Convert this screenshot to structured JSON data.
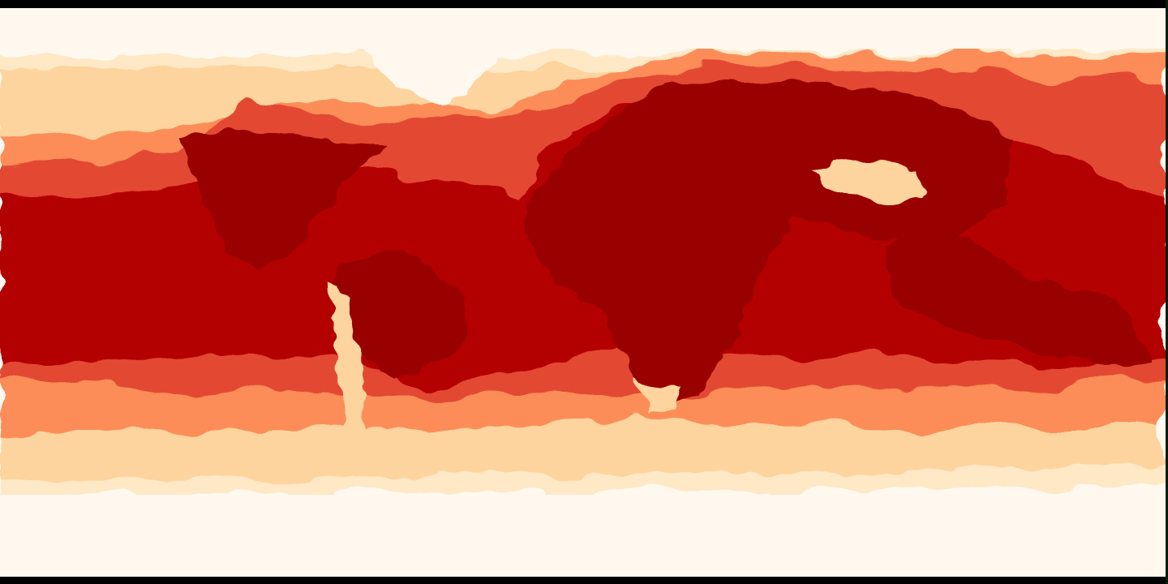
{
  "map": {
    "type": "heatmap",
    "projection": "equirectangular",
    "lon_range": [
      -180,
      180
    ],
    "lat_range": [
      -90,
      90
    ],
    "palette": {
      "level_1": "#fff8ef",
      "level_2": "#fee8c6",
      "level_3": "#fdd49e",
      "level_4": "#fc8d59",
      "level_5": "#e34a33",
      "level_6": "#b30000",
      "level_7": "#990000"
    },
    "frame_color": "#000000"
  }
}
